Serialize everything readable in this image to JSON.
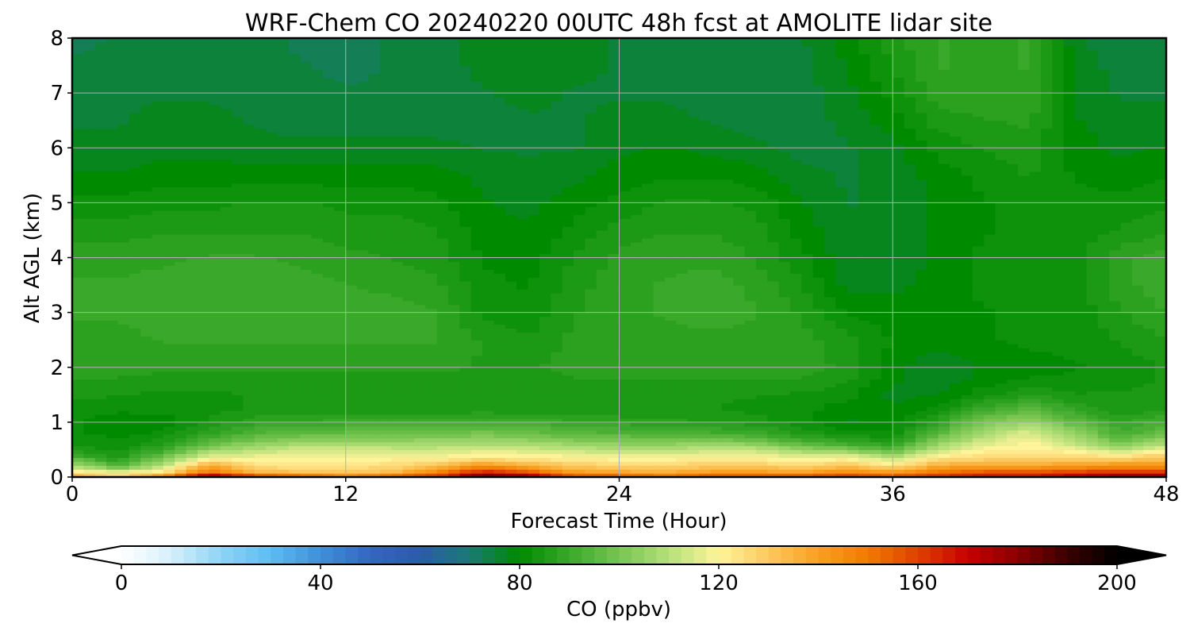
{
  "chart_data": {
    "type": "heatmap",
    "title": "WRF-Chem CO  20240220 00UTC 48h fcst at AMOLITE lidar site",
    "xlabel": "Forecast Time (Hour)",
    "ylabel": "Alt AGL (km)",
    "xlim": [
      0,
      48
    ],
    "ylim": [
      0,
      8
    ],
    "xticks": [
      "0",
      "12",
      "24",
      "36",
      "48"
    ],
    "yticks": [
      "0",
      "1",
      "2",
      "3",
      "4",
      "5",
      "6",
      "7",
      "8"
    ],
    "grid": true,
    "colorbar": {
      "label": "CO  (ppbv)",
      "range": [
        0,
        200
      ],
      "ticks": [
        "0",
        "40",
        "80",
        "120",
        "160",
        "200"
      ],
      "extend": "both",
      "colors": [
        "#ffffff",
        "#d6f0fb",
        "#8fd3f5",
        "#5ebcf2",
        "#3f8fd8",
        "#3566c0",
        "#2b5ba8",
        "#1a7a74",
        "#008a00",
        "#3aa82a",
        "#78c552",
        "#b6e07a",
        "#fff49a",
        "#fcc860",
        "#f9a020",
        "#f07a00",
        "#e04000",
        "#c80000",
        "#8a0000",
        "#3a0000",
        "#000000"
      ],
      "under_color": "#ffffff",
      "over_color": "#000000"
    },
    "x": [
      0,
      2,
      4,
      6,
      8,
      10,
      12,
      14,
      16,
      18,
      20,
      22,
      24,
      26,
      28,
      30,
      32,
      34,
      36,
      38,
      40,
      42,
      44,
      46,
      48
    ],
    "y": [
      0,
      0.05,
      0.1,
      0.2,
      0.3,
      0.4,
      0.5,
      0.6,
      0.7,
      0.8,
      1,
      1.25,
      1.5,
      1.75,
      2,
      2.5,
      3,
      3.5,
      4,
      4.5,
      5,
      5.5,
      6,
      6.5,
      7,
      7.5,
      8
    ],
    "z": [
      [
        140,
        130,
        150,
        180,
        165,
        160,
        150,
        155,
        165,
        185,
        180,
        160,
        160,
        155,
        160,
        160,
        160,
        165,
        160,
        165,
        170,
        170,
        175,
        180,
        180
      ],
      [
        130,
        122,
        135,
        168,
        150,
        145,
        140,
        145,
        155,
        178,
        170,
        150,
        148,
        145,
        150,
        150,
        150,
        155,
        150,
        158,
        162,
        162,
        168,
        172,
        172
      ],
      [
        122,
        115,
        122,
        150,
        135,
        130,
        130,
        132,
        145,
        165,
        155,
        140,
        138,
        135,
        140,
        140,
        138,
        145,
        140,
        150,
        155,
        155,
        160,
        160,
        160
      ],
      [
        110,
        95,
        112,
        140,
        125,
        124,
        124,
        126,
        132,
        145,
        138,
        130,
        128,
        128,
        130,
        130,
        128,
        132,
        125,
        138,
        140,
        140,
        142,
        145,
        145
      ],
      [
        100,
        88,
        104,
        125,
        120,
        120,
        120,
        122,
        124,
        130,
        126,
        124,
        122,
        122,
        124,
        124,
        120,
        124,
        115,
        128,
        130,
        131,
        132,
        133,
        135
      ],
      [
        90,
        84,
        96,
        115,
        116,
        118,
        118,
        118,
        118,
        120,
        120,
        118,
        116,
        116,
        118,
        118,
        114,
        115,
        105,
        120,
        124,
        126,
        124,
        122,
        128
      ],
      [
        85,
        83,
        90,
        105,
        110,
        114,
        114,
        113,
        113,
        115,
        114,
        112,
        110,
        110,
        112,
        112,
        105,
        102,
        95,
        112,
        120,
        122,
        118,
        110,
        118
      ],
      [
        84,
        82,
        86,
        98,
        104,
        108,
        108,
        108,
        108,
        108,
        108,
        106,
        104,
        104,
        105,
        104,
        96,
        92,
        88,
        106,
        116,
        120,
        112,
        102,
        110
      ],
      [
        83,
        81,
        84,
        92,
        98,
        102,
        102,
        102,
        103,
        103,
        103,
        100,
        99,
        98,
        98,
        96,
        90,
        86,
        84,
        100,
        112,
        118,
        108,
        96,
        104
      ],
      [
        82,
        80,
        82,
        88,
        94,
        96,
        97,
        97,
        98,
        100,
        98,
        95,
        94,
        92,
        92,
        90,
        86,
        83,
        82,
        95,
        108,
        116,
        104,
        92,
        98
      ],
      [
        82,
        79,
        80,
        84,
        88,
        89,
        90,
        90,
        91,
        92,
        91,
        89,
        88,
        87,
        86,
        85,
        82,
        78,
        80,
        88,
        100,
        106,
        96,
        88,
        92
      ],
      [
        83,
        82,
        82,
        83,
        84,
        84,
        84,
        84,
        84,
        84,
        84,
        84,
        84,
        84,
        84,
        83,
        82,
        80,
        79,
        82,
        90,
        95,
        88,
        84,
        86
      ],
      [
        84,
        84,
        83,
        83,
        84,
        84,
        84,
        84,
        84,
        84,
        84,
        84,
        84,
        84,
        84,
        84,
        83,
        82,
        78,
        79,
        83,
        86,
        84,
        84,
        85
      ],
      [
        86,
        86,
        85,
        85,
        85,
        85,
        85,
        85,
        85,
        85,
        85,
        86,
        86,
        86,
        86,
        86,
        86,
        84,
        79,
        77,
        80,
        82,
        82,
        83,
        84
      ],
      [
        87,
        87,
        87,
        87,
        87,
        87,
        87,
        87,
        87,
        86,
        86,
        87,
        87,
        87,
        87,
        87,
        87,
        86,
        80,
        76,
        79,
        80,
        81,
        82,
        84
      ],
      [
        88,
        88,
        89,
        89,
        89,
        89,
        89,
        89,
        89,
        86,
        84,
        87,
        88,
        88,
        88,
        88,
        87,
        85,
        81,
        80,
        81,
        82,
        82,
        84,
        86
      ],
      [
        89,
        89,
        90,
        91,
        91,
        91,
        90,
        90,
        89,
        83,
        82,
        86,
        88,
        89,
        90,
        89,
        86,
        81,
        80,
        80,
        81,
        82,
        82,
        86,
        89
      ],
      [
        89,
        89,
        90,
        91,
        91,
        90,
        89,
        88,
        87,
        82,
        81,
        85,
        88,
        89,
        90,
        88,
        84,
        78,
        78,
        80,
        82,
        82,
        82,
        88,
        90
      ],
      [
        88,
        88,
        88,
        89,
        89,
        88,
        87,
        86,
        85,
        81,
        80,
        84,
        87,
        88,
        88,
        86,
        82,
        77,
        77,
        79,
        82,
        83,
        83,
        88,
        90
      ],
      [
        85,
        85,
        86,
        86,
        86,
        86,
        85,
        85,
        84,
        80,
        79,
        82,
        85,
        86,
        86,
        85,
        80,
        77,
        77,
        79,
        81,
        82,
        82,
        84,
        86
      ],
      [
        82,
        82,
        83,
        83,
        84,
        84,
        83,
        83,
        82,
        79,
        78,
        80,
        82,
        84,
        84,
        83,
        79,
        76,
        77,
        79,
        81,
        83,
        82,
        82,
        83
      ],
      [
        79,
        79,
        80,
        80,
        80,
        80,
        80,
        80,
        80,
        78,
        77,
        78,
        80,
        81,
        81,
        80,
        77,
        76,
        77,
        80,
        82,
        84,
        81,
        80,
        81
      ],
      [
        77,
        77,
        78,
        78,
        77,
        77,
        77,
        77,
        77,
        76,
        76,
        76,
        78,
        79,
        78,
        77,
        75,
        76,
        78,
        82,
        84,
        85,
        80,
        78,
        79
      ],
      [
        76,
        76,
        77,
        77,
        76,
        75,
        75,
        75,
        75,
        75,
        76,
        76,
        77,
        77,
        76,
        75,
        75,
        77,
        80,
        85,
        86,
        87,
        79,
        77,
        77
      ],
      [
        75,
        76,
        76,
        76,
        75,
        75,
        74,
        74,
        75,
        76,
        77,
        76,
        76,
        76,
        75,
        75,
        75,
        78,
        82,
        88,
        88,
        88,
        78,
        76,
        76
      ],
      [
        74,
        75,
        76,
        76,
        75,
        74,
        73,
        74,
        75,
        77,
        78,
        77,
        76,
        76,
        75,
        74,
        75,
        79,
        84,
        89,
        88,
        89,
        78,
        75,
        75
      ],
      [
        73,
        74,
        75,
        76,
        75,
        73,
        73,
        74,
        75,
        77,
        78,
        77,
        76,
        75,
        74,
        74,
        76,
        80,
        85,
        89,
        88,
        89,
        77,
        74,
        74
      ]
    ]
  }
}
